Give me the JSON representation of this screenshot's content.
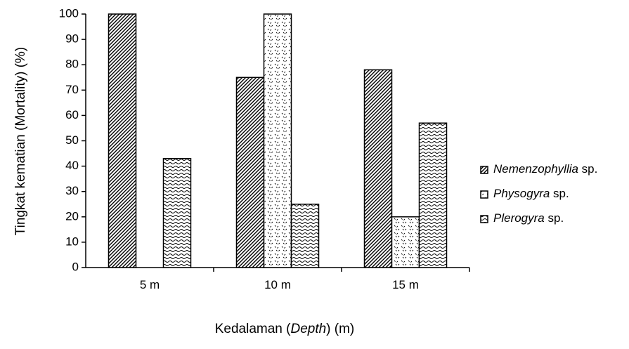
{
  "chart_data": {
    "type": "bar",
    "title": "",
    "categories": [
      "5 m",
      "10 m",
      "15 m"
    ],
    "series": [
      {
        "name": "Nemenzophyllia sp.",
        "name_italic": "Nemenzophyllia",
        "name_rest": " sp.",
        "values": [
          100,
          75,
          78
        ],
        "pattern": "diagonal-hatch"
      },
      {
        "name": "Physogyra sp.",
        "name_italic": "Physogyra",
        "name_rest": " sp.",
        "values": [
          0,
          100,
          20
        ],
        "pattern": "dotted-confetti"
      },
      {
        "name": "Plerogyra sp.",
        "name_italic": "Plerogyra",
        "name_rest": " sp.",
        "values": [
          43,
          25,
          57
        ],
        "pattern": "wave"
      }
    ],
    "ylim": [
      0,
      100
    ],
    "yticks": [
      "0",
      "10",
      "20",
      "30",
      "40",
      "50",
      "60",
      "70",
      "80",
      "90",
      "100"
    ],
    "ytick_values": [
      0,
      10,
      20,
      30,
      40,
      50,
      60,
      70,
      80,
      90,
      100
    ],
    "ylabel": "Tingkat kematian (Mortality) (%)",
    "xlabel": {
      "prefix": "Kedalaman (",
      "italic": "Depth",
      "suffix": ") (m)"
    },
    "grid": false,
    "legend_position": "right",
    "colors": {
      "bar_stroke": "#000000",
      "pattern_ink": "#000000",
      "background": "#ffffff"
    }
  }
}
